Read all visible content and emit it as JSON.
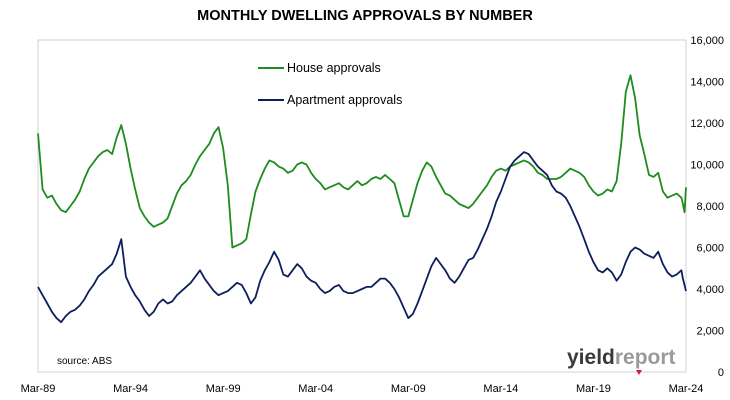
{
  "chart_data": {
    "type": "line",
    "title": "MONTHLY DWELLING APPROVALS BY NUMBER",
    "xlabel": "",
    "ylabel": "",
    "x_range": [
      "Mar-89",
      "Mar-24"
    ],
    "x_ticks": [
      "Mar-89",
      "Mar-94",
      "Mar-99",
      "Mar-04",
      "Mar-09",
      "Mar-14",
      "Mar-19",
      "Mar-24"
    ],
    "ylim": [
      0,
      16000
    ],
    "y_ticks": [
      "0",
      "2,000",
      "4,000",
      "6,000",
      "8,000",
      "10,000",
      "12,000",
      "14,000",
      "16,000"
    ],
    "y_axis_side": "right",
    "grid": false,
    "legend_placement": "top-center",
    "annotation": "source: ABS",
    "logo": "yieldreport",
    "series": [
      {
        "name": "House approvals",
        "color": "#1e8c1e",
        "points": [
          [
            "1989-03",
            11500
          ],
          [
            "1989-06",
            8800
          ],
          [
            "1989-09",
            8400
          ],
          [
            "1989-12",
            8500
          ],
          [
            "1990-03",
            8100
          ],
          [
            "1990-06",
            7800
          ],
          [
            "1990-09",
            7700
          ],
          [
            "1990-12",
            8000
          ],
          [
            "1991-03",
            8300
          ],
          [
            "1991-06",
            8700
          ],
          [
            "1991-09",
            9300
          ],
          [
            "1991-12",
            9800
          ],
          [
            "1992-03",
            10100
          ],
          [
            "1992-06",
            10400
          ],
          [
            "1992-09",
            10600
          ],
          [
            "1992-12",
            10700
          ],
          [
            "1993-03",
            10500
          ],
          [
            "1993-06",
            11300
          ],
          [
            "1993-09",
            11900
          ],
          [
            "1993-12",
            11000
          ],
          [
            "1994-03",
            9800
          ],
          [
            "1994-06",
            8800
          ],
          [
            "1994-09",
            7900
          ],
          [
            "1994-12",
            7500
          ],
          [
            "1995-03",
            7200
          ],
          [
            "1995-06",
            7000
          ],
          [
            "1995-09",
            7100
          ],
          [
            "1995-12",
            7200
          ],
          [
            "1996-03",
            7400
          ],
          [
            "1996-06",
            8000
          ],
          [
            "1996-09",
            8600
          ],
          [
            "1996-12",
            9000
          ],
          [
            "1997-03",
            9200
          ],
          [
            "1997-06",
            9500
          ],
          [
            "1997-09",
            10000
          ],
          [
            "1997-12",
            10400
          ],
          [
            "1998-03",
            10700
          ],
          [
            "1998-06",
            11000
          ],
          [
            "1998-09",
            11500
          ],
          [
            "1998-12",
            11800
          ],
          [
            "1999-03",
            10800
          ],
          [
            "1999-06",
            9000
          ],
          [
            "1999-09",
            6000
          ],
          [
            "1999-12",
            6100
          ],
          [
            "2000-03",
            6200
          ],
          [
            "2000-06",
            6400
          ],
          [
            "2000-09",
            7600
          ],
          [
            "2000-12",
            8700
          ],
          [
            "2001-03",
            9300
          ],
          [
            "2001-06",
            9800
          ],
          [
            "2001-09",
            10200
          ],
          [
            "2001-12",
            10100
          ],
          [
            "2002-03",
            9900
          ],
          [
            "2002-06",
            9800
          ],
          [
            "2002-09",
            9600
          ],
          [
            "2002-12",
            9700
          ],
          [
            "2003-03",
            10000
          ],
          [
            "2003-06",
            10100
          ],
          [
            "2003-09",
            10000
          ],
          [
            "2003-12",
            9600
          ],
          [
            "2004-03",
            9300
          ],
          [
            "2004-06",
            9100
          ],
          [
            "2004-09",
            8800
          ],
          [
            "2004-12",
            8900
          ],
          [
            "2005-03",
            9000
          ],
          [
            "2005-06",
            9100
          ],
          [
            "2005-09",
            8900
          ],
          [
            "2005-12",
            8800
          ],
          [
            "2006-03",
            9000
          ],
          [
            "2006-06",
            9200
          ],
          [
            "2006-09",
            9000
          ],
          [
            "2006-12",
            9100
          ],
          [
            "2007-03",
            9300
          ],
          [
            "2007-06",
            9400
          ],
          [
            "2007-09",
            9300
          ],
          [
            "2007-12",
            9500
          ],
          [
            "2008-03",
            9300
          ],
          [
            "2008-06",
            9100
          ],
          [
            "2008-09",
            8300
          ],
          [
            "2008-12",
            7500
          ],
          [
            "2009-03",
            7500
          ],
          [
            "2009-06",
            8300
          ],
          [
            "2009-09",
            9100
          ],
          [
            "2009-12",
            9700
          ],
          [
            "2010-03",
            10100
          ],
          [
            "2010-06",
            9900
          ],
          [
            "2010-09",
            9400
          ],
          [
            "2010-12",
            9000
          ],
          [
            "2011-03",
            8600
          ],
          [
            "2011-06",
            8500
          ],
          [
            "2011-09",
            8300
          ],
          [
            "2011-12",
            8100
          ],
          [
            "2012-03",
            8000
          ],
          [
            "2012-06",
            7900
          ],
          [
            "2012-09",
            8100
          ],
          [
            "2012-12",
            8400
          ],
          [
            "2013-03",
            8700
          ],
          [
            "2013-06",
            9000
          ],
          [
            "2013-09",
            9400
          ],
          [
            "2013-12",
            9700
          ],
          [
            "2014-03",
            9800
          ],
          [
            "2014-06",
            9700
          ],
          [
            "2014-09",
            9900
          ],
          [
            "2014-12",
            10000
          ],
          [
            "2015-03",
            10100
          ],
          [
            "2015-06",
            10200
          ],
          [
            "2015-09",
            10100
          ],
          [
            "2015-12",
            9900
          ],
          [
            "2016-03",
            9600
          ],
          [
            "2016-06",
            9500
          ],
          [
            "2016-09",
            9300
          ],
          [
            "2016-12",
            9300
          ],
          [
            "2017-03",
            9300
          ],
          [
            "2017-06",
            9400
          ],
          [
            "2017-09",
            9600
          ],
          [
            "2017-12",
            9800
          ],
          [
            "2018-03",
            9700
          ],
          [
            "2018-06",
            9600
          ],
          [
            "2018-09",
            9400
          ],
          [
            "2018-12",
            9000
          ],
          [
            "2019-03",
            8700
          ],
          [
            "2019-06",
            8500
          ],
          [
            "2019-09",
            8600
          ],
          [
            "2019-12",
            8800
          ],
          [
            "2020-03",
            8700
          ],
          [
            "2020-06",
            9200
          ],
          [
            "2020-09",
            11000
          ],
          [
            "2020-12",
            13500
          ],
          [
            "2021-03",
            14300
          ],
          [
            "2021-06",
            13200
          ],
          [
            "2021-09",
            11400
          ],
          [
            "2021-12",
            10500
          ],
          [
            "2022-03",
            9500
          ],
          [
            "2022-06",
            9400
          ],
          [
            "2022-09",
            9600
          ],
          [
            "2022-12",
            8700
          ],
          [
            "2023-03",
            8400
          ],
          [
            "2023-06",
            8500
          ],
          [
            "2023-09",
            8600
          ],
          [
            "2023-12",
            8400
          ],
          [
            "2024-01",
            8100
          ],
          [
            "2024-02",
            7700
          ],
          [
            "2024-03",
            8900
          ]
        ]
      },
      {
        "name": "Apartment approvals",
        "color": "#0d1f5c",
        "points": [
          [
            "1989-03",
            4100
          ],
          [
            "1989-06",
            3700
          ],
          [
            "1989-09",
            3300
          ],
          [
            "1989-12",
            2900
          ],
          [
            "1990-03",
            2600
          ],
          [
            "1990-06",
            2400
          ],
          [
            "1990-09",
            2700
          ],
          [
            "1990-12",
            2900
          ],
          [
            "1991-03",
            3000
          ],
          [
            "1991-06",
            3200
          ],
          [
            "1991-09",
            3500
          ],
          [
            "1991-12",
            3900
          ],
          [
            "1992-03",
            4200
          ],
          [
            "1992-06",
            4600
          ],
          [
            "1992-09",
            4800
          ],
          [
            "1992-12",
            5000
          ],
          [
            "1993-03",
            5200
          ],
          [
            "1993-06",
            5700
          ],
          [
            "1993-09",
            6400
          ],
          [
            "1993-12",
            4600
          ],
          [
            "1994-03",
            4100
          ],
          [
            "1994-06",
            3700
          ],
          [
            "1994-09",
            3400
          ],
          [
            "1994-12",
            3000
          ],
          [
            "1995-03",
            2700
          ],
          [
            "1995-06",
            2900
          ],
          [
            "1995-09",
            3300
          ],
          [
            "1995-12",
            3500
          ],
          [
            "1996-03",
            3300
          ],
          [
            "1996-06",
            3400
          ],
          [
            "1996-09",
            3700
          ],
          [
            "1996-12",
            3900
          ],
          [
            "1997-03",
            4100
          ],
          [
            "1997-06",
            4300
          ],
          [
            "1997-09",
            4600
          ],
          [
            "1997-12",
            4900
          ],
          [
            "1998-03",
            4500
          ],
          [
            "1998-06",
            4200
          ],
          [
            "1998-09",
            3900
          ],
          [
            "1998-12",
            3700
          ],
          [
            "1999-03",
            3800
          ],
          [
            "1999-06",
            3900
          ],
          [
            "1999-09",
            4100
          ],
          [
            "1999-12",
            4300
          ],
          [
            "2000-03",
            4200
          ],
          [
            "2000-06",
            3800
          ],
          [
            "2000-09",
            3300
          ],
          [
            "2000-12",
            3600
          ],
          [
            "2001-03",
            4400
          ],
          [
            "2001-06",
            4900
          ],
          [
            "2001-09",
            5300
          ],
          [
            "2001-12",
            5800
          ],
          [
            "2002-03",
            5400
          ],
          [
            "2002-06",
            4700
          ],
          [
            "2002-09",
            4600
          ],
          [
            "2002-12",
            4900
          ],
          [
            "2003-03",
            5200
          ],
          [
            "2003-06",
            5000
          ],
          [
            "2003-09",
            4600
          ],
          [
            "2003-12",
            4400
          ],
          [
            "2004-03",
            4300
          ],
          [
            "2004-06",
            4000
          ],
          [
            "2004-09",
            3800
          ],
          [
            "2004-12",
            3900
          ],
          [
            "2005-03",
            4100
          ],
          [
            "2005-06",
            4200
          ],
          [
            "2005-09",
            3900
          ],
          [
            "2005-12",
            3800
          ],
          [
            "2006-03",
            3800
          ],
          [
            "2006-06",
            3900
          ],
          [
            "2006-09",
            4000
          ],
          [
            "2006-12",
            4100
          ],
          [
            "2007-03",
            4100
          ],
          [
            "2007-06",
            4300
          ],
          [
            "2007-09",
            4500
          ],
          [
            "2007-12",
            4500
          ],
          [
            "2008-03",
            4300
          ],
          [
            "2008-06",
            4000
          ],
          [
            "2008-09",
            3600
          ],
          [
            "2008-12",
            3100
          ],
          [
            "2009-03",
            2600
          ],
          [
            "2009-06",
            2800
          ],
          [
            "2009-09",
            3300
          ],
          [
            "2009-12",
            3900
          ],
          [
            "2010-03",
            4500
          ],
          [
            "2010-06",
            5100
          ],
          [
            "2010-09",
            5500
          ],
          [
            "2010-12",
            5200
          ],
          [
            "2011-03",
            4900
          ],
          [
            "2011-06",
            4500
          ],
          [
            "2011-09",
            4300
          ],
          [
            "2011-12",
            4600
          ],
          [
            "2012-03",
            5000
          ],
          [
            "2012-06",
            5400
          ],
          [
            "2012-09",
            5500
          ],
          [
            "2012-12",
            5900
          ],
          [
            "2013-03",
            6400
          ],
          [
            "2013-06",
            6900
          ],
          [
            "2013-09",
            7500
          ],
          [
            "2013-12",
            8200
          ],
          [
            "2014-03",
            8700
          ],
          [
            "2014-06",
            9300
          ],
          [
            "2014-09",
            9900
          ],
          [
            "2014-12",
            10200
          ],
          [
            "2015-03",
            10400
          ],
          [
            "2015-06",
            10600
          ],
          [
            "2015-09",
            10500
          ],
          [
            "2015-12",
            10200
          ],
          [
            "2016-03",
            9900
          ],
          [
            "2016-06",
            9700
          ],
          [
            "2016-09",
            9500
          ],
          [
            "2016-12",
            9000
          ],
          [
            "2017-03",
            8700
          ],
          [
            "2017-06",
            8600
          ],
          [
            "2017-09",
            8400
          ],
          [
            "2017-12",
            8000
          ],
          [
            "2018-03",
            7500
          ],
          [
            "2018-06",
            7000
          ],
          [
            "2018-09",
            6400
          ],
          [
            "2018-12",
            5800
          ],
          [
            "2019-03",
            5300
          ],
          [
            "2019-06",
            4900
          ],
          [
            "2019-09",
            4800
          ],
          [
            "2019-12",
            5000
          ],
          [
            "2020-03",
            4800
          ],
          [
            "2020-06",
            4400
          ],
          [
            "2020-09",
            4700
          ],
          [
            "2020-12",
            5300
          ],
          [
            "2021-03",
            5800
          ],
          [
            "2021-06",
            6000
          ],
          [
            "2021-09",
            5900
          ],
          [
            "2021-12",
            5700
          ],
          [
            "2022-03",
            5600
          ],
          [
            "2022-06",
            5500
          ],
          [
            "2022-09",
            5800
          ],
          [
            "2022-12",
            5200
          ],
          [
            "2023-03",
            4800
          ],
          [
            "2023-06",
            4600
          ],
          [
            "2023-09",
            4700
          ],
          [
            "2023-12",
            4900
          ],
          [
            "2024-01",
            4500
          ],
          [
            "2024-02",
            4200
          ],
          [
            "2024-03",
            3900
          ]
        ]
      }
    ]
  }
}
